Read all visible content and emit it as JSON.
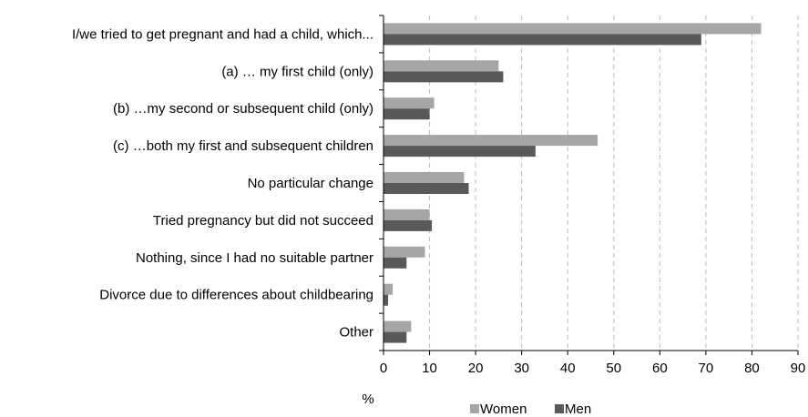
{
  "chart_data": {
    "type": "bar",
    "orientation": "horizontal",
    "title": "",
    "xlabel": "%",
    "ylabel": "",
    "xlim": [
      0,
      90
    ],
    "x_ticks": [
      0,
      10,
      20,
      30,
      40,
      50,
      60,
      70,
      80,
      90
    ],
    "grid": "vertical dashed",
    "legend_position": "bottom",
    "categories": [
      "I/we tried to get pregnant and had a child, which...",
      "(a) … my first child (only)",
      "(b) …my second or subsequent child (only)",
      "(c) …both my first and subsequent children",
      "No particular change",
      "Tried pregnancy but did not succeed",
      "Nothing, since I had no suitable partner",
      "Divorce due to differences about childbearing",
      "Other"
    ],
    "series": [
      {
        "name": "Women",
        "color": "#a6a6a6",
        "values": [
          82,
          25,
          11,
          46.5,
          17.5,
          10,
          9,
          2,
          6
        ]
      },
      {
        "name": "Men",
        "color": "#595959",
        "values": [
          69,
          26,
          10,
          33,
          18.5,
          10.5,
          5,
          1,
          5
        ]
      }
    ]
  }
}
